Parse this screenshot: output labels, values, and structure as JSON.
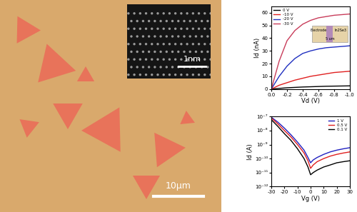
{
  "micrograph": {
    "scale_bar": "10μm",
    "inset": {
      "scale_bar": "1nm"
    }
  },
  "chart_data": [
    {
      "type": "line",
      "xlabel": "Vd (V)",
      "ylabel": "Id (nA)",
      "x": [
        0.0,
        -0.1,
        -0.2,
        -0.3,
        -0.4,
        -0.5,
        -0.6,
        -0.7,
        -0.8,
        -0.9,
        -1.0
      ],
      "series": [
        {
          "name": "0 V",
          "color": "#000000",
          "values": [
            0,
            0.5,
            1.0,
            1.3,
            1.6,
            1.8,
            2.0,
            2.2,
            2.3,
            2.4,
            2.5
          ]
        },
        {
          "name": "-10 V",
          "color": "#e02020",
          "values": [
            0,
            3,
            5,
            7,
            8.5,
            10,
            11,
            12,
            13,
            13.5,
            14
          ]
        },
        {
          "name": "-20 V",
          "color": "#2030c0",
          "values": [
            0,
            10,
            18,
            24,
            28,
            30,
            31.5,
            32.5,
            33,
            33.5,
            34
          ]
        },
        {
          "name": "-30 V",
          "color": "#c83c5a",
          "values": [
            0,
            22,
            38,
            46,
            51,
            54,
            56,
            57,
            58,
            58.5,
            59
          ]
        }
      ],
      "xlim": [
        0.0,
        -1.0
      ],
      "xticks": [
        0.0,
        -0.2,
        -0.4,
        -0.6,
        -0.8,
        -1.0
      ],
      "ylim": [
        0,
        65
      ],
      "yticks": [
        0,
        10,
        20,
        30,
        40,
        50,
        60
      ],
      "legend": "upper left",
      "annotations": [
        "Electrode",
        "In2Se3",
        "5 um"
      ]
    },
    {
      "type": "line",
      "xlabel": "Vg (V)",
      "ylabel": "Id (A)",
      "log": "y",
      "x": [
        -30,
        -25,
        -20,
        -15,
        -10,
        -5,
        -2,
        0,
        2,
        5,
        10,
        15,
        20,
        25,
        30
      ],
      "series": [
        {
          "name": "1 V",
          "color": "#2020c0",
          "values": [
            9e-08,
            4e-08,
            1.5e-08,
            5e-09,
            1.5e-09,
            4e-10,
            1.2e-10,
            5e-11,
            8e-11,
            1.2e-10,
            2e-10,
            3e-10,
            4e-10,
            5e-10,
            6e-10
          ]
        },
        {
          "name": "0.5 V",
          "color": "#e02020",
          "values": [
            8e-08,
            3e-08,
            1e-08,
            3.5e-09,
            1e-09,
            2.5e-10,
            7e-11,
            2e-11,
            3.5e-11,
            6e-11,
            1e-10,
            1.5e-10,
            2e-10,
            2.5e-10,
            3e-10
          ]
        },
        {
          "name": "0.1 V",
          "color": "#000000",
          "values": [
            6e-08,
            2e-08,
            6e-09,
            2e-09,
            5e-10,
            1e-10,
            2.5e-11,
            7e-12,
            1e-11,
            1.5e-11,
            2.5e-11,
            3.5e-11,
            5e-11,
            6e-11,
            7e-11
          ]
        }
      ],
      "xlim": [
        -30,
        30
      ],
      "xticks": [
        -30,
        -20,
        -10,
        0,
        10,
        20,
        30
      ],
      "ylim": [
        1e-12,
        1e-07
      ],
      "yticks": [
        {
          "value": 1e-12,
          "label": "10⁻¹²"
        },
        {
          "value": 1e-11,
          "label": "10⁻¹¹"
        },
        {
          "value": 1e-10,
          "label": "10⁻¹⁰"
        },
        {
          "value": 1e-09,
          "label": "10⁻⁹"
        },
        {
          "value": 1e-08,
          "label": "10⁻⁸"
        },
        {
          "value": 1e-07,
          "label": "10⁻⁷"
        }
      ],
      "legend": "upper right"
    }
  ]
}
